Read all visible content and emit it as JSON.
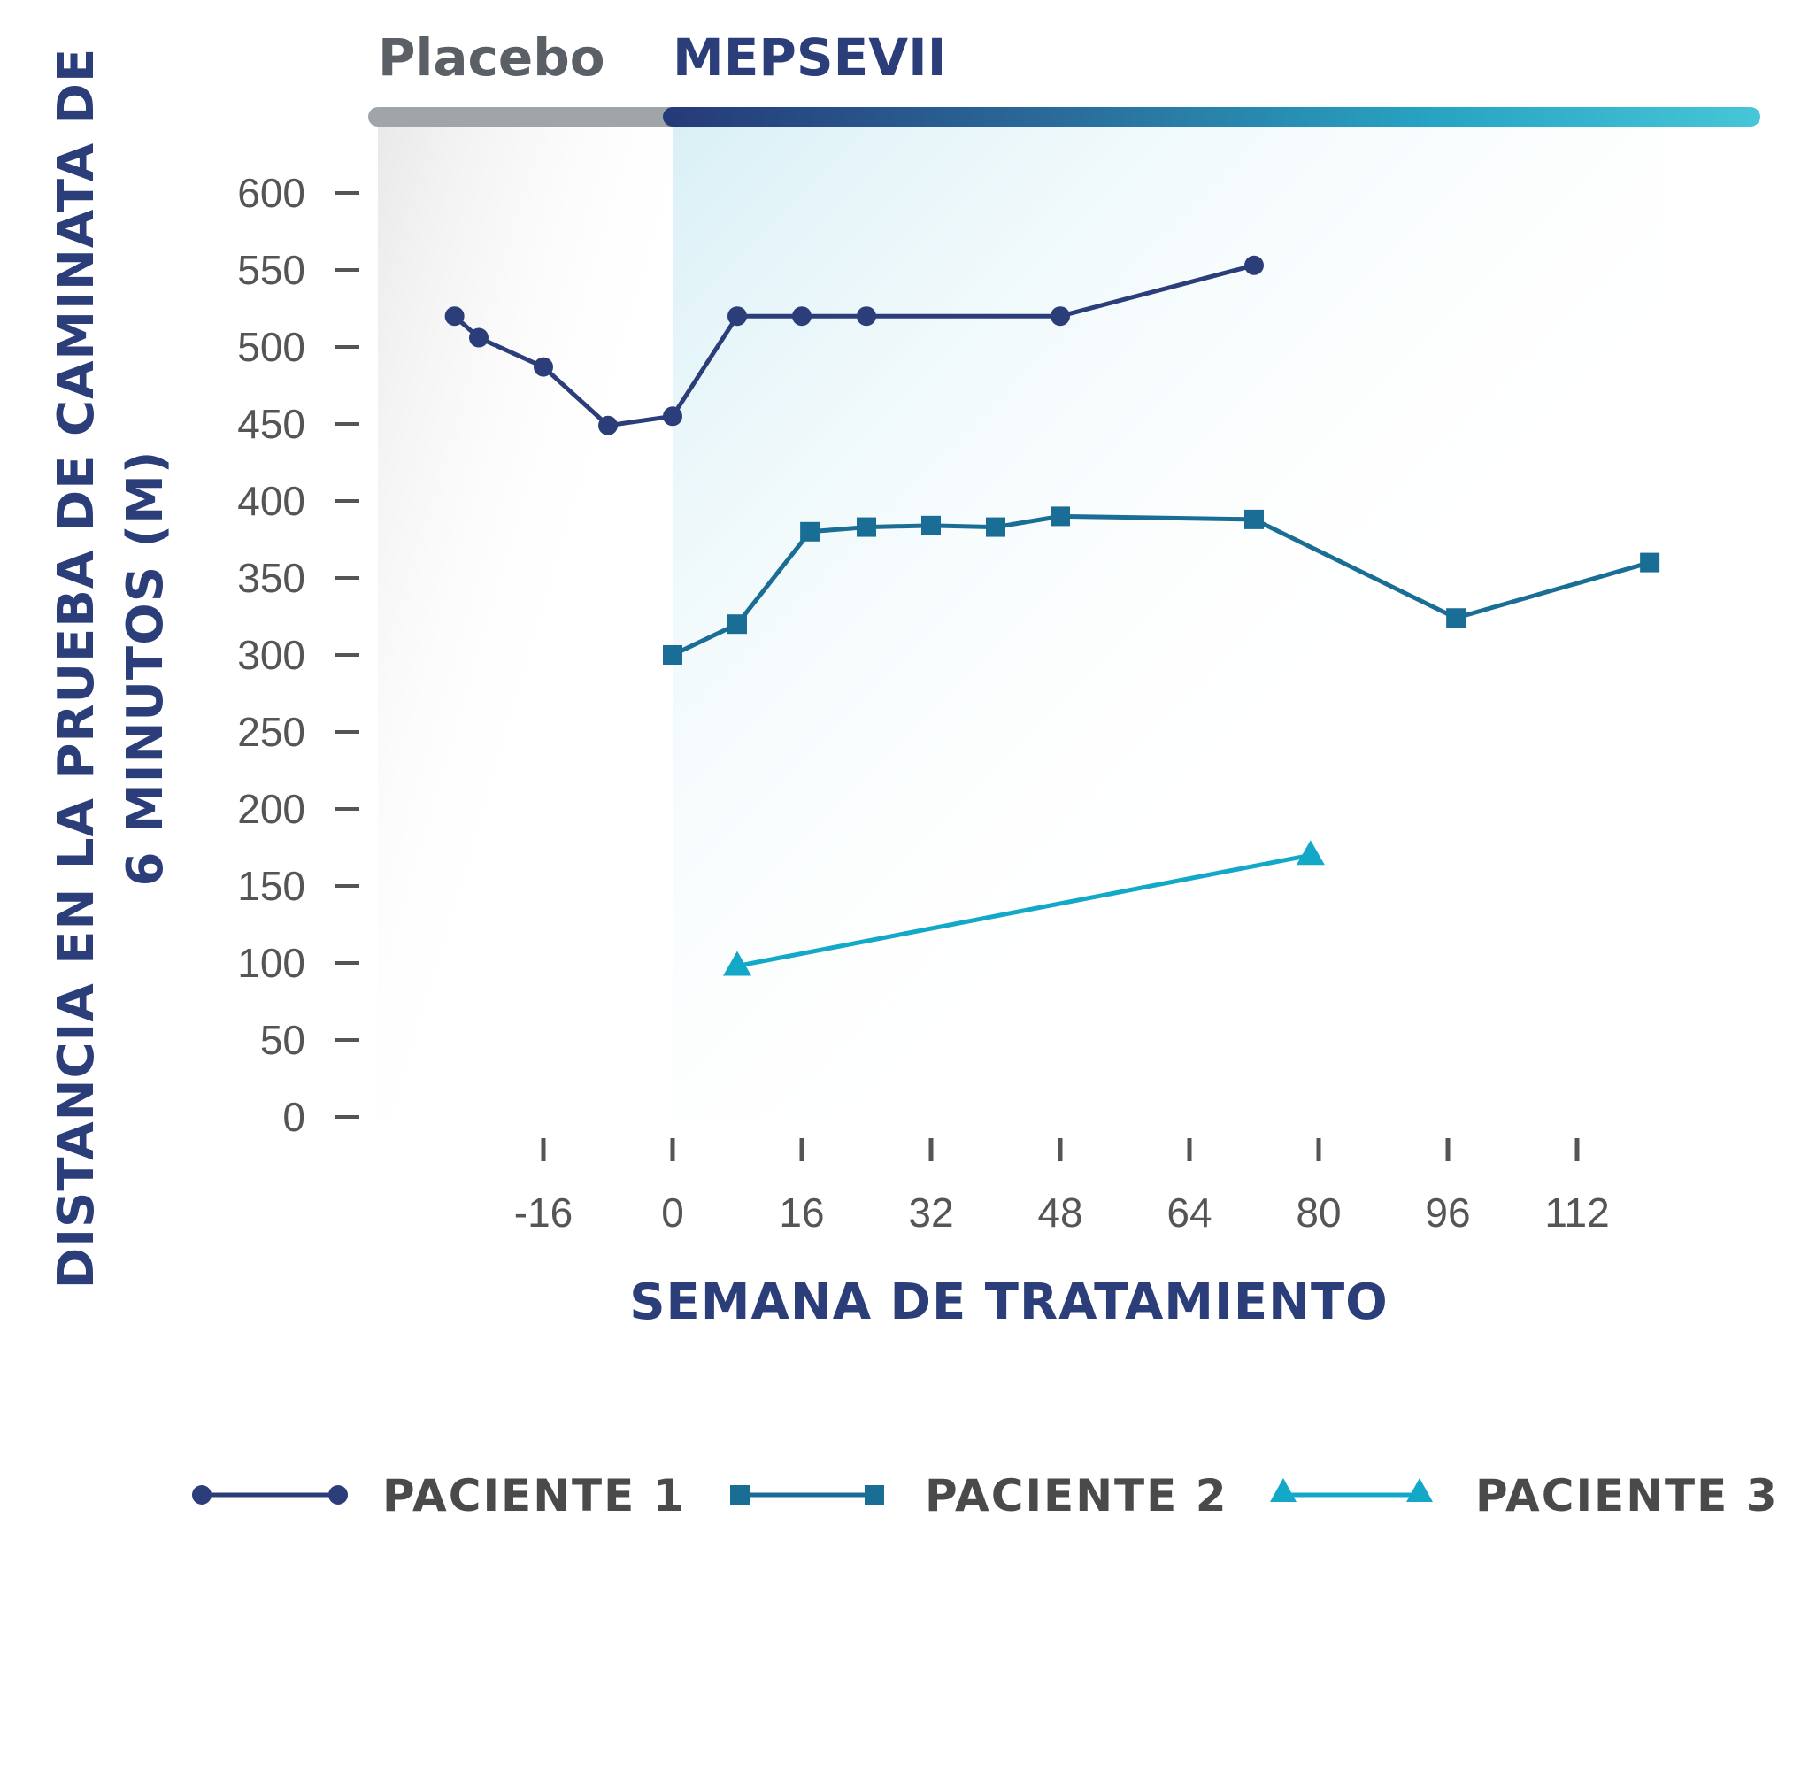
{
  "phases": {
    "placebo_label": "Placebo",
    "treatment_label": "MEPSEVII"
  },
  "colors": {
    "navy": "#2c3e7a",
    "teal": "#1a6e96",
    "cyan": "#14a8c8",
    "placebo_bar": "#a0a5aa",
    "text": "#555555"
  },
  "chart_data": {
    "type": "line",
    "xlabel": "SEMANA DE TRATAMIENTO",
    "ylabel_line1": "DISTANCIA EN LA PRUEBA DE CAMINATA DE",
    "ylabel_line2": "6 MINUTOS (M)",
    "xlim": [
      -24,
      136
    ],
    "ylim": [
      0,
      600
    ],
    "x_ticks": [
      -16,
      0,
      16,
      32,
      48,
      64,
      80,
      96,
      112
    ],
    "x_tick_labels": [
      "-16",
      "0",
      "16",
      "32",
      "48",
      "64",
      "80",
      "96",
      "112"
    ],
    "y_ticks": [
      0,
      50,
      100,
      150,
      200,
      250,
      300,
      350,
      400,
      450,
      500,
      550,
      600
    ],
    "y_tick_labels": [
      "0",
      "50",
      "100",
      "150",
      "200",
      "250",
      "300",
      "350",
      "400",
      "450",
      "500",
      "550",
      "600"
    ],
    "grid": false,
    "legend_position": "bottom",
    "series": [
      {
        "name": "PACIENTE 1",
        "marker": "circle",
        "color": "#2c3e7a",
        "points": [
          [
            -27,
            520
          ],
          [
            -24,
            506
          ],
          [
            -16,
            487
          ],
          [
            -8,
            449
          ],
          [
            0,
            455
          ],
          [
            8,
            520
          ],
          [
            16,
            520
          ],
          [
            24,
            520
          ],
          [
            48,
            520
          ],
          [
            72,
            553
          ]
        ]
      },
      {
        "name": "PACIENTE 2",
        "marker": "square",
        "color": "#1a6e96",
        "points": [
          [
            0,
            300
          ],
          [
            8,
            320
          ],
          [
            17,
            380
          ],
          [
            24,
            383
          ],
          [
            32,
            384
          ],
          [
            40,
            383
          ],
          [
            48,
            390
          ],
          [
            72,
            388
          ],
          [
            97,
            324
          ],
          [
            121,
            360
          ]
        ]
      },
      {
        "name": "PACIENTE 3",
        "marker": "triangle",
        "color": "#14a8c8",
        "points": [
          [
            8,
            98
          ],
          [
            79,
            170
          ]
        ]
      }
    ]
  }
}
